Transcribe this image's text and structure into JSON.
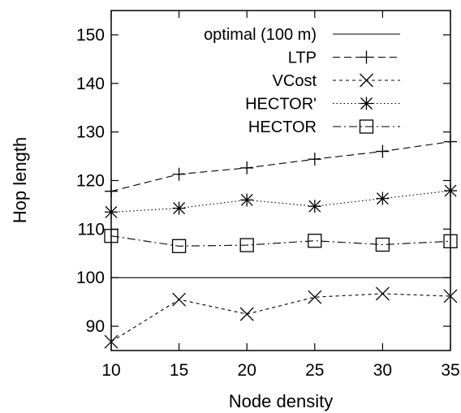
{
  "chart_data": {
    "type": "line",
    "xlabel": "Node density",
    "ylabel": "Hop length",
    "x": [
      10,
      15,
      20,
      25,
      30,
      35
    ],
    "xlim": [
      10,
      35
    ],
    "ylim": [
      85,
      155
    ],
    "xticks": [
      "10",
      "15",
      "20",
      "25",
      "30",
      "35"
    ],
    "yticks": [
      "90",
      "100",
      "110",
      "120",
      "130",
      "140",
      "150"
    ],
    "grid": false,
    "legend_position": "top-right",
    "series": [
      {
        "name": "optimal (100 m)",
        "values": [
          100,
          100,
          100,
          100,
          100,
          100
        ],
        "dash": "solid",
        "marker": "none"
      },
      {
        "name": "LTP",
        "values": [
          117.8,
          121.3,
          122.6,
          124.4,
          126.0,
          128.0
        ],
        "dash": "dashed",
        "marker": "plus"
      },
      {
        "name": "VCost",
        "values": [
          86.8,
          95.5,
          92.5,
          96.0,
          96.7,
          96.2
        ],
        "dash": "short-dashed",
        "marker": "cross"
      },
      {
        "name": "HECTOR'",
        "values": [
          113.5,
          114.3,
          116.0,
          114.7,
          116.3,
          117.9
        ],
        "dash": "dotted",
        "marker": "star"
      },
      {
        "name": "HECTOR",
        "values": [
          108.6,
          106.5,
          106.7,
          107.6,
          106.8,
          107.5
        ],
        "dash": "dash-dot",
        "marker": "square"
      }
    ]
  }
}
